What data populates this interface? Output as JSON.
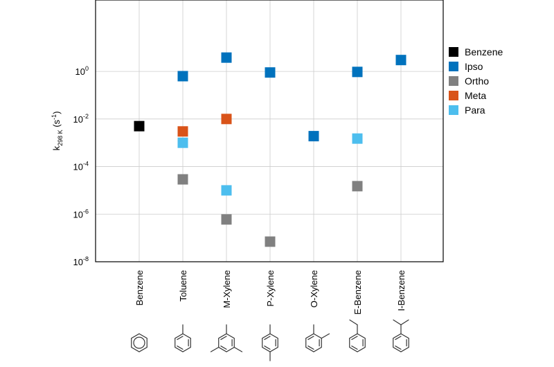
{
  "chart_data": {
    "type": "scatter",
    "y_scale": "log",
    "ylim": [
      1e-08,
      1000
    ],
    "ylabel": {
      "main": "k",
      "sub": "298 K",
      "unit": " (s",
      "unit_sup": "-1",
      "close": ")"
    },
    "y_ticks": [
      {
        "base": "10",
        "exp": "0",
        "value": 1
      },
      {
        "base": "10",
        "exp": "-2",
        "value": 0.01
      },
      {
        "base": "10",
        "exp": "-4",
        "value": 0.0001
      },
      {
        "base": "10",
        "exp": "-6",
        "value": 1e-06
      },
      {
        "base": "10",
        "exp": "-8",
        "value": 1e-08
      }
    ],
    "categories": [
      "Benzene",
      "Toluene",
      "M-Xylene",
      "P-Xylene",
      "O-Xylene",
      "E-Benzene",
      "I-Benzene"
    ],
    "grid": true,
    "legend_position": "right",
    "series": [
      {
        "name": "Benzene",
        "color": "#000000",
        "points": [
          {
            "x": "Benzene",
            "y": 0.005
          }
        ]
      },
      {
        "name": "Ipso",
        "color": "#0072BD",
        "points": [
          {
            "x": "Toluene",
            "y": 0.63
          },
          {
            "x": "M-Xylene",
            "y": 3.8
          },
          {
            "x": "P-Xylene",
            "y": 0.9
          },
          {
            "x": "O-Xylene",
            "y": 0.0019
          },
          {
            "x": "E-Benzene",
            "y": 0.95
          },
          {
            "x": "I-Benzene",
            "y": 3.0
          }
        ]
      },
      {
        "name": "Ortho",
        "color": "#808080",
        "points": [
          {
            "x": "Toluene",
            "y": 2.9e-05
          },
          {
            "x": "M-Xylene",
            "y": 6e-07
          },
          {
            "x": "P-Xylene",
            "y": 7e-08
          },
          {
            "x": "E-Benzene",
            "y": 1.5e-05
          }
        ]
      },
      {
        "name": "Meta",
        "color": "#D95319",
        "points": [
          {
            "x": "Toluene",
            "y": 0.003
          },
          {
            "x": "M-Xylene",
            "y": 0.01
          }
        ]
      },
      {
        "name": "Para",
        "color": "#4DBEEE",
        "points": [
          {
            "x": "Toluene",
            "y": 0.001
          },
          {
            "x": "M-Xylene",
            "y": 1e-05
          },
          {
            "x": "E-Benzene",
            "y": 0.0015
          }
        ]
      }
    ],
    "structures": [
      {
        "category": "Benzene",
        "icon": "benzene-ring-icon"
      },
      {
        "category": "Toluene",
        "icon": "toluene-structure-icon"
      },
      {
        "category": "M-Xylene",
        "icon": "m-xylene-structure-icon"
      },
      {
        "category": "P-Xylene",
        "icon": "p-xylene-structure-icon"
      },
      {
        "category": "O-Xylene",
        "icon": "o-xylene-structure-icon"
      },
      {
        "category": "E-Benzene",
        "icon": "ethylbenzene-structure-icon"
      },
      {
        "category": "I-Benzene",
        "icon": "isopropylbenzene-structure-icon"
      }
    ]
  }
}
